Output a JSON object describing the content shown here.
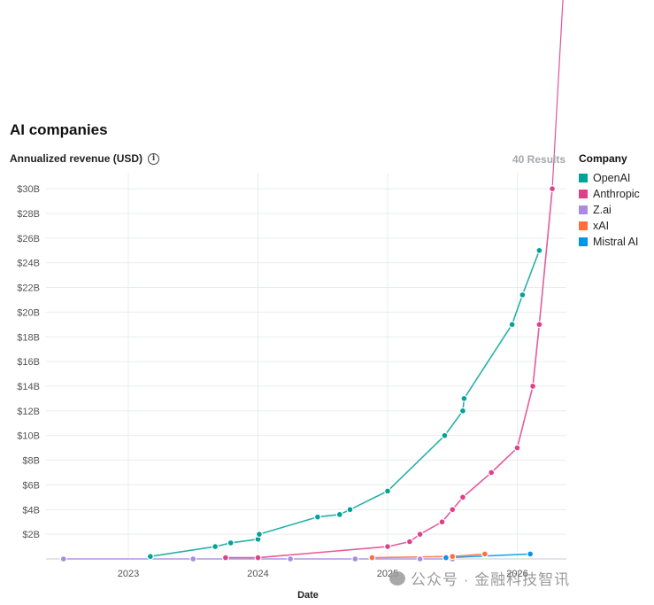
{
  "chart_data": {
    "type": "line",
    "title": "AI companies",
    "ylabel": "Annualized revenue (USD)",
    "xlabel": "Date",
    "results_label": "40 Results",
    "legend_title": "Company",
    "legend_position": "right",
    "grid": true,
    "x_ticks": [
      "2023",
      "2024",
      "2025",
      "2026"
    ],
    "y_ticks": [
      "$2B",
      "$4B",
      "$6B",
      "$8B",
      "$10B",
      "$12B",
      "$14B",
      "$16B",
      "$18B",
      "$20B",
      "$22B",
      "$24B",
      "$26B",
      "$28B",
      "$30B"
    ],
    "ylim": [
      0,
      30
    ],
    "x_unit": "year (decimal)",
    "y_unit": "billions USD",
    "series": [
      {
        "name": "OpenAI",
        "color": "#00a39a",
        "points": [
          [
            2023.17,
            0.2
          ],
          [
            2023.67,
            1.0
          ],
          [
            2023.79,
            1.3
          ],
          [
            2024.0,
            1.6
          ],
          [
            2024.01,
            2.0
          ],
          [
            2024.46,
            3.4
          ],
          [
            2024.63,
            3.6
          ],
          [
            2024.71,
            4.0
          ],
          [
            2025.0,
            5.5
          ],
          [
            2025.44,
            10.0
          ],
          [
            2025.58,
            12.0
          ],
          [
            2025.59,
            13.0
          ],
          [
            2025.96,
            19.0
          ],
          [
            2026.04,
            21.4
          ],
          [
            2026.17,
            25.0
          ]
        ]
      },
      {
        "name": "Anthropic",
        "color": "#e0408a",
        "points": [
          [
            2023.75,
            0.1
          ],
          [
            2024.0,
            0.1
          ],
          [
            2025.0,
            1.0
          ],
          [
            2025.17,
            1.4
          ],
          [
            2025.25,
            2.0
          ],
          [
            2025.42,
            3.0
          ],
          [
            2025.5,
            4.0
          ],
          [
            2025.58,
            5.0
          ],
          [
            2025.8,
            7.0
          ],
          [
            2026.0,
            9.0
          ],
          [
            2026.12,
            14.0
          ],
          [
            2026.17,
            19.0
          ],
          [
            2026.27,
            30.0
          ]
        ]
      },
      {
        "name": "Z.ai",
        "color": "#a98be6",
        "points": [
          [
            2022.5,
            0.0
          ],
          [
            2023.5,
            0.0
          ],
          [
            2024.25,
            0.0
          ],
          [
            2024.75,
            0.0
          ],
          [
            2025.25,
            0.0
          ],
          [
            2025.5,
            0.0
          ]
        ]
      },
      {
        "name": "xAI",
        "color": "#ff6f3c",
        "points": [
          [
            2024.88,
            0.1
          ],
          [
            2025.5,
            0.2
          ],
          [
            2025.75,
            0.4
          ]
        ]
      },
      {
        "name": "Mistral AI",
        "color": "#0096e6",
        "points": [
          [
            2025.45,
            0.1
          ],
          [
            2026.1,
            0.4
          ]
        ]
      }
    ]
  },
  "watermark": "公众号 · 金融科技智讯"
}
